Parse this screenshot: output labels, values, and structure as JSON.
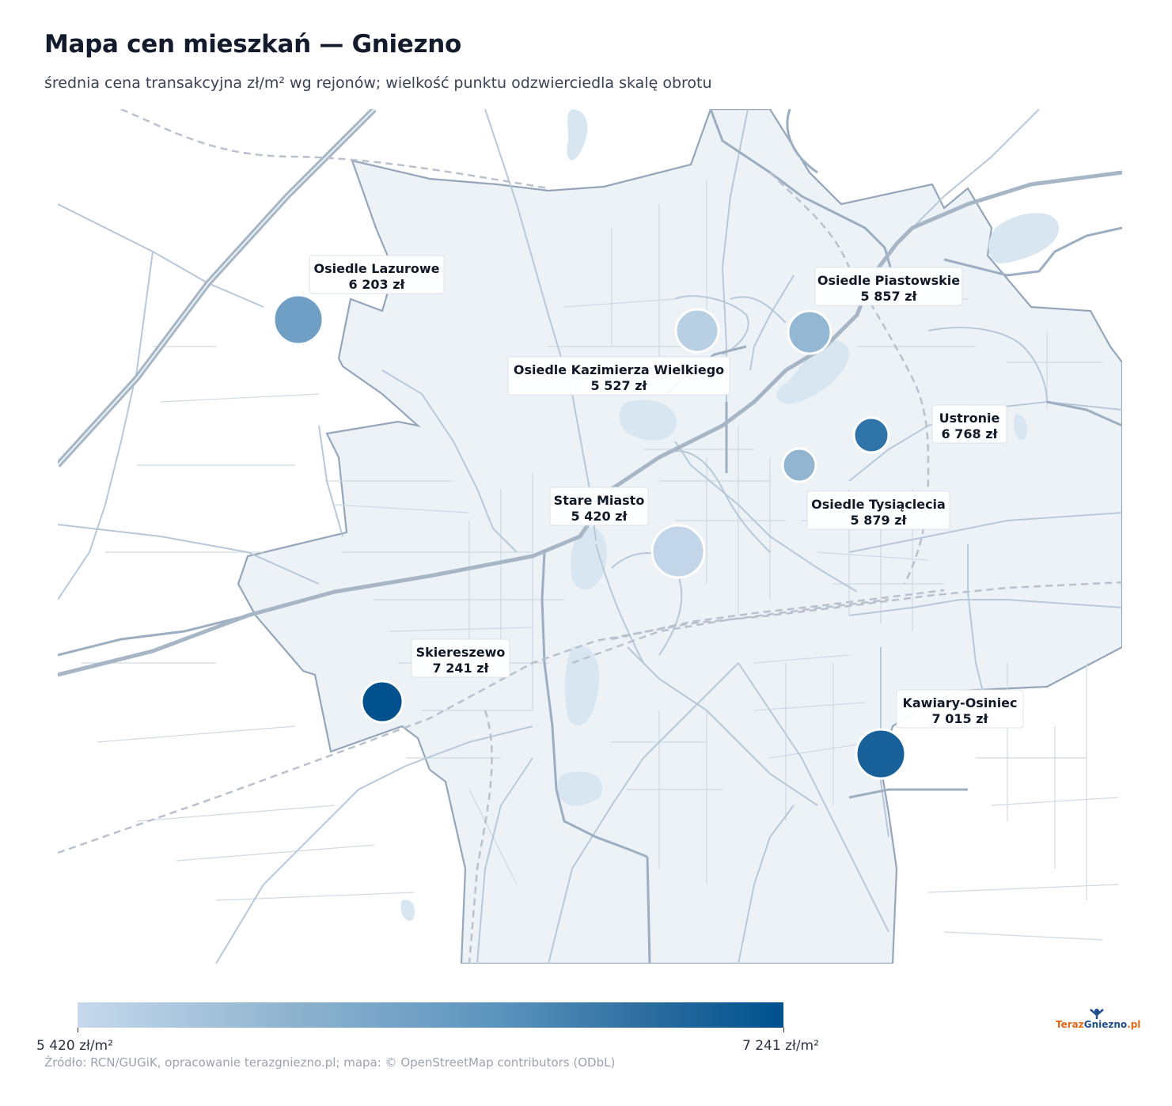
{
  "header": {
    "title": "Mapa cen mieszkań — Gniezno",
    "subtitle": "średnia cena transakcyjna zł/m² wg rejonów; wielkość punktu odzwierciedla skalę obrotu"
  },
  "districts": [
    {
      "name": "Osiedle Lazurowe",
      "price": "6 203 zł",
      "color": "#6f9fc4"
    },
    {
      "name": "Osiedle Piastowskie",
      "price": "5 857 zł",
      "color": "#94b7d3"
    },
    {
      "name": "Osiedle Kazimierza Wielkiego",
      "price": "5 527 zł",
      "color": "#b9cfe4"
    },
    {
      "name": "Ustronie",
      "price": "6 768 zł",
      "color": "#2f74a8"
    },
    {
      "name": "Osiedle Tysiąclecia",
      "price": "5 879 zł",
      "color": "#92b5d2"
    },
    {
      "name": "Stare Miasto",
      "price": "5 420 zł",
      "color": "#c3d6e9"
    },
    {
      "name": "Skiereszewo",
      "price": "7 241 zł",
      "color": "#00518e"
    },
    {
      "name": "Kawiary-Osiniec",
      "price": "7 015 zł",
      "color": "#17609a"
    }
  ],
  "legend": {
    "min_label": "5 420 zł/m²",
    "max_label": "7 241 zł/m²",
    "color_low": "#c6d9ec",
    "color_high": "#00518e"
  },
  "footer": {
    "source": "Źródło: RCN/GUGiK, opracowanie terazgniezno.pl; mapa: © OpenStreetMap contributors (ODbL)"
  },
  "logo": {
    "part1": "Teraz",
    "part2": "Gniezno",
    "part3": ".pl"
  }
}
